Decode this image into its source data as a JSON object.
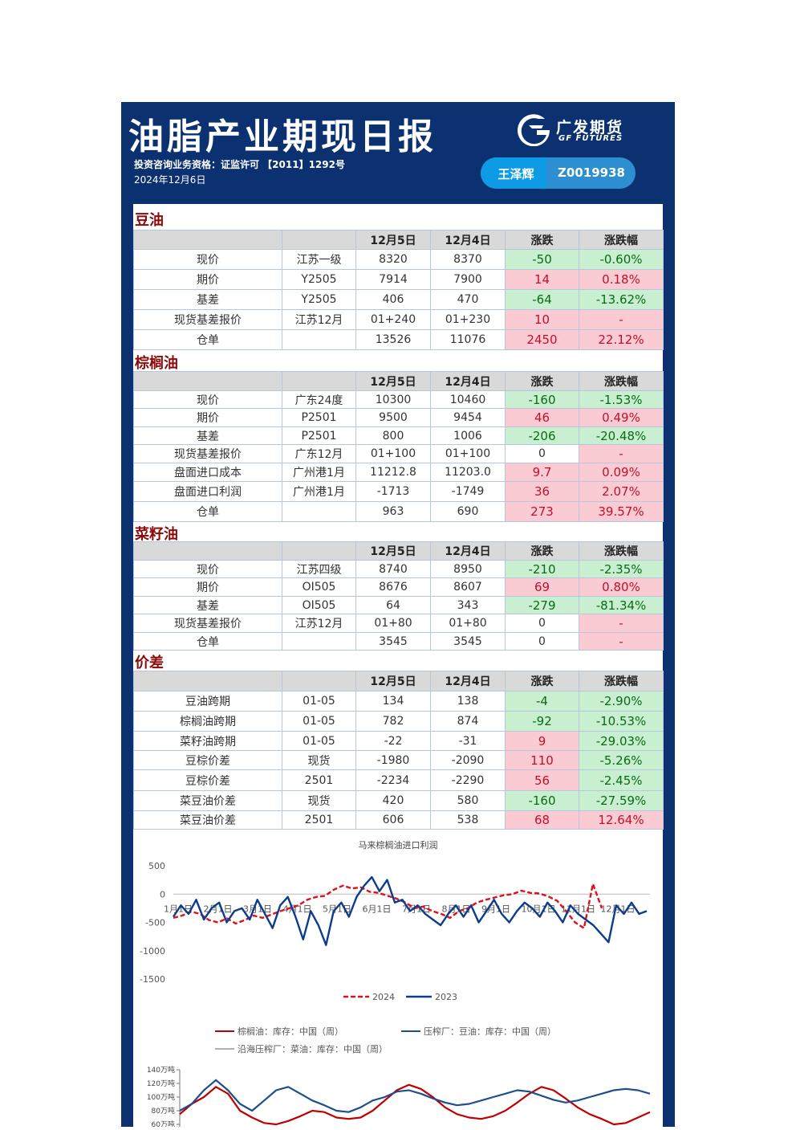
{
  "header": {
    "title": "油脂产业期现日报",
    "license": "投资咨询业务资格：证监许可 【2011】1292号",
    "date": "2024年12月6日",
    "logo_cn": "广发期货",
    "logo_en": "GF FUTURES",
    "analyst_name": "王泽辉",
    "analyst_code": "Z0019938"
  },
  "colors": {
    "panel": "#0b3170",
    "up": "#c0102a",
    "up_bg": "#fbcbd3",
    "down": "#0a6a16",
    "down_bg": "#c8efcf",
    "section_title": "#8b0a0a"
  },
  "columns": [
    "",
    "",
    "12月5日",
    "12月4日",
    "涨跌",
    "涨跌幅"
  ],
  "sections": [
    {
      "title": "豆油",
      "rows": [
        [
          "现价",
          "江苏一级",
          "8320",
          "8370",
          "-50",
          "-0.60%"
        ],
        [
          "期价",
          "Y2505",
          "7914",
          "7900",
          "14",
          "0.18%"
        ],
        [
          "基差",
          "Y2505",
          "406",
          "470",
          "-64",
          "-13.62%"
        ],
        [
          "现货基差报价",
          "江苏12月",
          "01+240",
          "01+230",
          "10",
          "-"
        ],
        [
          "仓单",
          "",
          "13526",
          "11076",
          "2450",
          "22.12%"
        ]
      ]
    },
    {
      "title": "棕榈油",
      "rows": [
        [
          "现价",
          "广东24度",
          "10300",
          "10460",
          "-160",
          "-1.53%"
        ],
        [
          "期价",
          "P2501",
          "9500",
          "9454",
          "46",
          "0.49%"
        ],
        [
          "基差",
          "P2501",
          "800",
          "1006",
          "-206",
          "-20.48%"
        ],
        [
          "现货基差报价",
          "广东12月",
          "01+100",
          "01+100",
          "0",
          "-"
        ],
        [
          "盘面进口成本",
          "广州港1月",
          "11212.8",
          "11203.0",
          "9.7",
          "0.09%"
        ],
        [
          "盘面进口利润",
          "广州港1月",
          "-1713",
          "-1749",
          "36",
          "2.07%"
        ],
        [
          "仓单",
          "",
          "963",
          "690",
          "273",
          "39.57%"
        ]
      ]
    },
    {
      "title": "菜籽油",
      "rows": [
        [
          "现价",
          "江苏四级",
          "8740",
          "8950",
          "-210",
          "-2.35%"
        ],
        [
          "期价",
          "OI505",
          "8676",
          "8607",
          "69",
          "0.80%"
        ],
        [
          "基差",
          "OI505",
          "64",
          "343",
          "-279",
          "-81.34%"
        ],
        [
          "现货基差报价",
          "江苏12月",
          "01+80",
          "01+80",
          "0",
          "-"
        ],
        [
          "仓单",
          "",
          "3545",
          "3545",
          "0",
          "-"
        ]
      ]
    },
    {
      "title": "价差",
      "rows": [
        [
          "豆油跨期",
          "01-05",
          "134",
          "138",
          "-4",
          "-2.90%"
        ],
        [
          "棕榈油跨期",
          "01-05",
          "782",
          "874",
          "-92",
          "-10.53%"
        ],
        [
          "菜籽油跨期",
          "01-05",
          "-22",
          "-31",
          "9",
          "-29.03%"
        ],
        [
          "豆棕价差",
          "现货",
          "-1980",
          "-2090",
          "110",
          "-5.26%"
        ],
        [
          "豆棕价差",
          "2501",
          "-2234",
          "-2290",
          "56",
          "-2.45%"
        ],
        [
          "菜豆油价差",
          "现货",
          "420",
          "580",
          "-160",
          "-27.59%"
        ],
        [
          "菜豆油价差",
          "2501",
          "606",
          "538",
          "68",
          "12.64%"
        ]
      ]
    }
  ],
  "chart_data": [
    {
      "type": "line",
      "title": "马来棕榈油进口利润",
      "ylim": [
        -1500,
        500
      ],
      "yticks": [
        "500",
        "0",
        "-500",
        "-1000",
        "-1500"
      ],
      "xticks": [
        "1月1日",
        "2月1日",
        "3月1日",
        "4月1日",
        "5月1日",
        "6月1日",
        "7月1日",
        "8月1日",
        "9月1日",
        "10月1日",
        "11月1日",
        "12月1日"
      ],
      "legend_position": "bottom",
      "series": [
        {
          "name": "2024",
          "color": "#e0101a",
          "style": "dashed",
          "values": [
            -420,
            -380,
            -310,
            -350,
            -460,
            -500,
            -430,
            -520,
            -460,
            -380,
            -420,
            -360,
            -300,
            -250,
            -200,
            -100,
            -50,
            -30,
            80,
            150,
            100,
            120,
            40,
            20,
            -30,
            -80,
            -150,
            -250,
            -220,
            -300,
            -350,
            -420,
            -300,
            -250,
            -150,
            -100,
            -60,
            -20,
            0,
            60,
            20,
            10,
            -40,
            -120,
            -300,
            -500,
            -600,
            180,
            -250
          ]
        },
        {
          "name": "2023",
          "color": "#0b3d8c",
          "style": "solid",
          "values": [
            -400,
            -200,
            -350,
            -100,
            -450,
            -250,
            -150,
            -500,
            -300,
            -250,
            -450,
            -100,
            -350,
            -600,
            -200,
            -50,
            -400,
            -800,
            -300,
            -550,
            -900,
            -300,
            -150,
            -400,
            -50,
            150,
            300,
            50,
            250,
            -150,
            -100,
            -300,
            -200,
            -350,
            -450,
            -550,
            -350,
            -200,
            -400,
            -200,
            -500,
            -300,
            -100,
            -350,
            -500,
            -300,
            -150,
            -250,
            -400,
            -150,
            -300,
            -500,
            -200,
            -350,
            -450,
            -550,
            -700,
            -850,
            -200,
            -350,
            -150,
            -350,
            -300
          ]
        }
      ]
    },
    {
      "type": "line",
      "legend_position": "top",
      "yticks": [
        "140万吨",
        "120万吨",
        "100万吨",
        "80万吨",
        "60万吨"
      ],
      "ylim": [
        60,
        140
      ],
      "series": [
        {
          "name": "棕榈油：库存：中国（周）",
          "color": "#c00000",
          "values": [
            75,
            90,
            100,
            115,
            105,
            80,
            70,
            62,
            60,
            65,
            72,
            80,
            78,
            70,
            68,
            70,
            80,
            95,
            110,
            118,
            112,
            100,
            85,
            75,
            70,
            68,
            72,
            80,
            92,
            105,
            115,
            110,
            98,
            85,
            75,
            68,
            60,
            62,
            70,
            78
          ]
        },
        {
          "name": "压榨厂：豆油：库存：中国（周）",
          "color": "#1f4e8c",
          "values": [
            80,
            90,
            110,
            125,
            110,
            90,
            80,
            95,
            110,
            115,
            105,
            95,
            88,
            80,
            78,
            85,
            95,
            100,
            108,
            110,
            105,
            98,
            92,
            88,
            90,
            95,
            100,
            105,
            110,
            108,
            102,
            96,
            92,
            95,
            100,
            105,
            110,
            112,
            110,
            105
          ]
        },
        {
          "name": "沿海压榨厂：菜油：库存：中国（周）",
          "color": "#b0b0b0",
          "values": []
        }
      ]
    }
  ]
}
